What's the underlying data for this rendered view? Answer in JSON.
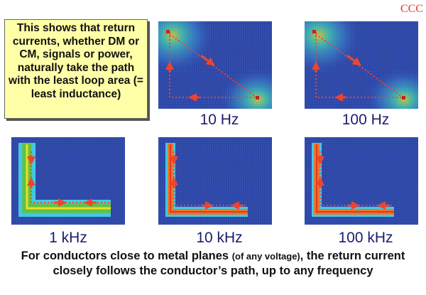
{
  "logo_text": "CCC",
  "callout": "This shows that return currents, whether DM or CM, signals or power, naturally take the path with the least loop area (= least inductance)",
  "panels": [
    {
      "label": "10 Hz",
      "pattern": "diagonal"
    },
    {
      "label": "100 Hz",
      "pattern": "diagonal"
    },
    {
      "label": "1 kHz",
      "pattern": "L-wide"
    },
    {
      "label": "10 kHz",
      "pattern": "L-narrow"
    },
    {
      "label": "100 kHz",
      "pattern": "L-narrow"
    }
  ],
  "caption": {
    "part1": "For conductors close to metal planes ",
    "part2": "(of any voltage)",
    "part3": ", the return current closely follows the conductor’s path, up to any frequency"
  },
  "colors": {
    "plane": "#2d47a8",
    "arrow": "#f0402a",
    "label": "#1c1c6e",
    "callout_bg": "#ffffa8"
  }
}
